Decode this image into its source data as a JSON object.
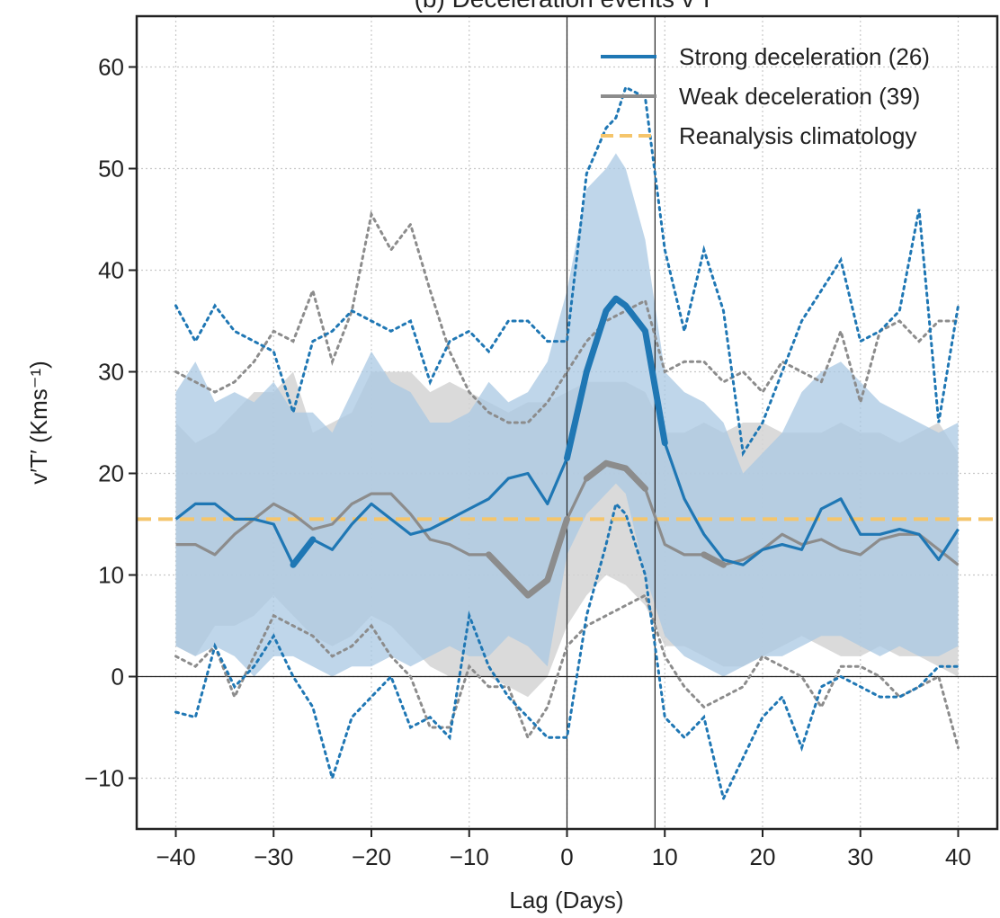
{
  "colors": {
    "strong": "#1f77b4",
    "weak": "#8c8c8c",
    "climatology": "#f5c56b",
    "band_strong": "#aac8e3",
    "band_weak": "#d3d3d3"
  },
  "chart_data": {
    "type": "line",
    "title": "(b) Deceleration events v′T′",
    "xlabel": "Lag (Days)",
    "ylabel": "v′T′ (Kms⁻¹)",
    "xlim": [
      -44,
      44
    ],
    "ylim": [
      -15,
      65
    ],
    "xticks": [
      -40,
      -30,
      -20,
      -10,
      0,
      10,
      20,
      30,
      40
    ],
    "xtick_labels": [
      "−40",
      "−30",
      "−20",
      "−10",
      "0",
      "10",
      "20",
      "30",
      "40"
    ],
    "yticks": [
      -10,
      0,
      10,
      20,
      30,
      40,
      50,
      60
    ],
    "ytick_labels": [
      "−10",
      "0",
      "10",
      "20",
      "30",
      "40",
      "50",
      "60"
    ],
    "grid": true,
    "legend_position": "top-right",
    "vlines": [
      0,
      9
    ],
    "hline": 0,
    "climatology": 15.5,
    "series": [
      {
        "name": "Strong deceleration (26)",
        "key": "strong",
        "x": [
          -40,
          -38,
          -36,
          -34,
          -32,
          -30,
          -28,
          -26,
          -24,
          -22,
          -20,
          -18,
          -16,
          -14,
          -12,
          -10,
          -8,
          -6,
          -4,
          -2,
          0,
          2,
          4,
          5,
          6,
          8,
          10,
          12,
          14,
          16,
          18,
          20,
          22,
          24,
          26,
          28,
          30,
          32,
          34,
          36,
          38,
          40
        ],
        "values": [
          15.5,
          17,
          17,
          15.5,
          15.5,
          15,
          11,
          13.5,
          12.5,
          15,
          17,
          15.5,
          14,
          14.5,
          15.5,
          16.5,
          17.5,
          19.5,
          20,
          17,
          21.5,
          30,
          36,
          37.2,
          36.5,
          34,
          23,
          17.5,
          14,
          11.5,
          11,
          12.5,
          13,
          12.5,
          16.5,
          17.5,
          14,
          14,
          14.5,
          14,
          11.5,
          14.5
        ],
        "upper": [
          28,
          31,
          27,
          28,
          27,
          29,
          26,
          26,
          24,
          28,
          32,
          29,
          28,
          25,
          25,
          26,
          29,
          27,
          28,
          31,
          38,
          48,
          50,
          51.5,
          50,
          43,
          30,
          28,
          27,
          25,
          20,
          22,
          24,
          28,
          30,
          31,
          29,
          27,
          26,
          25,
          24,
          25
        ],
        "lower": [
          3,
          2,
          3,
          2,
          0,
          2,
          2,
          1,
          0,
          1,
          1,
          2,
          1,
          2,
          3,
          2,
          2,
          4,
          3,
          1,
          12,
          16,
          18,
          19,
          18,
          10,
          4,
          2,
          1,
          0,
          1,
          2,
          2,
          3,
          4,
          4,
          3,
          2,
          3,
          2,
          2,
          3
        ],
        "max": [
          36.5,
          33,
          36.5,
          34,
          33,
          32,
          26,
          33,
          34,
          36,
          35,
          34,
          35,
          29,
          33,
          34,
          32,
          35,
          35,
          33,
          33,
          49.5,
          54,
          55,
          58,
          57,
          42,
          34,
          42,
          36,
          22,
          25,
          30,
          35,
          38,
          41,
          33,
          34,
          36,
          46,
          25,
          36.5
        ],
        "min": [
          -3.5,
          -4,
          3,
          -1,
          1,
          4,
          0,
          -3,
          -10,
          -4,
          -2,
          0,
          -5,
          -4,
          -6,
          6,
          1,
          -2,
          -4,
          -6,
          -6,
          6,
          13,
          17,
          16,
          10,
          -4,
          -6,
          -4,
          -12,
          -8,
          -4,
          -2,
          -7,
          -1,
          0,
          -1,
          -2,
          -2,
          -1,
          1,
          1
        ]
      },
      {
        "name": "Weak deceleration (39)",
        "key": "weak",
        "x": [
          -40,
          -38,
          -36,
          -34,
          -32,
          -30,
          -28,
          -26,
          -24,
          -22,
          -20,
          -18,
          -16,
          -14,
          -12,
          -10,
          -8,
          -6,
          -4,
          -2,
          0,
          2,
          4,
          6,
          8,
          10,
          12,
          14,
          16,
          18,
          20,
          22,
          24,
          26,
          28,
          30,
          32,
          34,
          36,
          38,
          40
        ],
        "values": [
          13,
          13,
          12,
          14,
          15.5,
          17,
          16,
          14.5,
          15,
          17,
          18,
          18,
          16,
          13.5,
          13,
          12,
          12,
          10,
          8,
          9.5,
          15.5,
          19.5,
          21,
          20.5,
          18.5,
          13,
          12,
          12,
          11,
          11.5,
          12.5,
          14,
          13,
          13.5,
          12.5,
          12,
          13.5,
          14,
          14,
          12.5,
          11
        ],
        "upper": [
          25,
          23,
          24,
          26,
          28,
          28,
          30,
          24,
          25,
          26,
          30,
          30,
          30,
          28,
          29,
          28,
          27,
          26,
          27,
          27,
          28,
          29,
          29,
          29,
          28,
          24,
          24,
          25,
          24,
          25,
          25,
          24,
          24,
          24,
          25,
          24,
          24,
          23,
          24,
          25,
          22
        ],
        "lower": [
          3,
          2,
          5,
          5,
          6,
          8,
          6,
          4,
          3,
          4,
          6,
          5,
          3,
          1,
          0,
          0,
          0,
          -1,
          -2,
          0,
          5,
          8,
          10,
          9,
          7,
          3,
          3,
          2,
          1,
          1,
          2,
          3,
          4,
          3,
          2,
          2,
          3,
          2,
          2,
          1,
          0
        ],
        "max": [
          30,
          29,
          28,
          29,
          31,
          34,
          33,
          38,
          31,
          36,
          45.5,
          42,
          44.5,
          38,
          32,
          28,
          26,
          25,
          25,
          27,
          30,
          33,
          35,
          36,
          37,
          30,
          31,
          31,
          29,
          30,
          28,
          31,
          30,
          29,
          34,
          27,
          34,
          35,
          33,
          35,
          35
        ],
        "min": [
          2,
          1,
          3,
          -2,
          2,
          6,
          5,
          4,
          2,
          3,
          5,
          2,
          0,
          -5,
          -5,
          1,
          -1,
          -1,
          -6,
          -3,
          3,
          5,
          6,
          7,
          8,
          2,
          -1,
          -3,
          -2,
          -1,
          2,
          1,
          0,
          -3,
          1,
          1,
          0,
          -2,
          -1,
          0,
          -7
        ]
      },
      {
        "name": "Reanalysis climatology",
        "key": "climatology"
      }
    ]
  }
}
